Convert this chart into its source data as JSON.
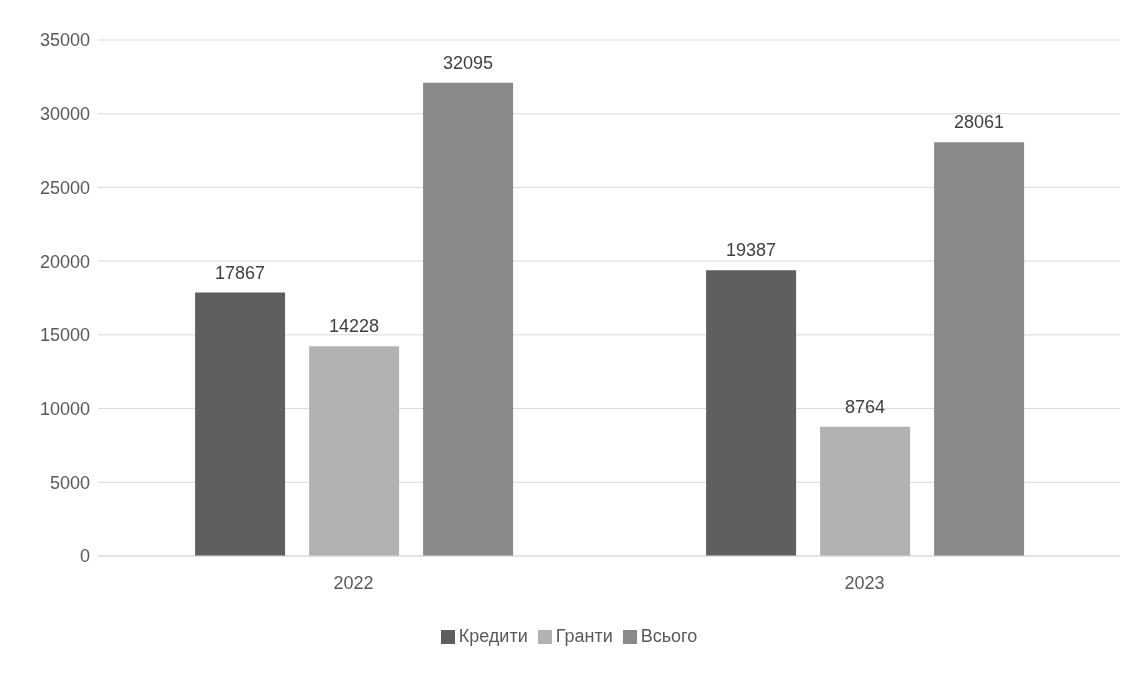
{
  "chart_data": {
    "type": "bar",
    "categories": [
      "2022",
      "2023"
    ],
    "series": [
      {
        "name": "Кредити",
        "color": "#5f5f5f",
        "values": [
          17867,
          19387
        ]
      },
      {
        "name": "Гранти",
        "color": "#b2b2b2",
        "values": [
          14228,
          8764
        ]
      },
      {
        "name": "Всього",
        "color": "#898989",
        "values": [
          32095,
          28061
        ]
      }
    ],
    "ylim": [
      0,
      35000
    ],
    "yticks": [
      0,
      5000,
      10000,
      15000,
      20000,
      25000,
      30000,
      35000
    ],
    "grid": "y",
    "legend": "bottom",
    "data_labels": true
  }
}
